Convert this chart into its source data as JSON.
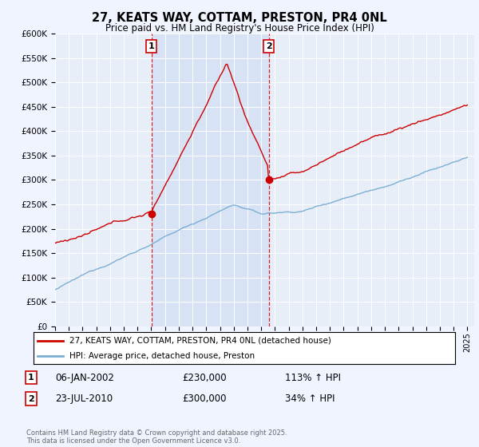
{
  "title": "27, KEATS WAY, COTTAM, PRESTON, PR4 0NL",
  "subtitle": "Price paid vs. HM Land Registry's House Price Index (HPI)",
  "ylabel_ticks": [
    "£0",
    "£50K",
    "£100K",
    "£150K",
    "£200K",
    "£250K",
    "£300K",
    "£350K",
    "£400K",
    "£450K",
    "£500K",
    "£550K",
    "£600K"
  ],
  "ylim": [
    0,
    600000
  ],
  "ytick_values": [
    0,
    50000,
    100000,
    150000,
    200000,
    250000,
    300000,
    350000,
    400000,
    450000,
    500000,
    550000,
    600000
  ],
  "bg_color": "#f0f4ff",
  "plot_bg_color": "#e8eef8",
  "shade_color": "#d0ddf5",
  "red_line_color": "#cc0000",
  "blue_line_color": "#7bafd4",
  "grid_color": "#ffffff",
  "legend_red": "27, KEATS WAY, COTTAM, PRESTON, PR4 0NL (detached house)",
  "legend_blue": "HPI: Average price, detached house, Preston",
  "annotation1_date": "06-JAN-2002",
  "annotation1_price": "£230,000",
  "annotation1_hpi": "113% ↑ HPI",
  "annotation2_date": "23-JUL-2010",
  "annotation2_price": "£300,000",
  "annotation2_hpi": "34% ↑ HPI",
  "footer": "Contains HM Land Registry data © Crown copyright and database right 2025.\nThis data is licensed under the Open Government Licence v3.0.",
  "marker1_year": 2002.05,
  "marker2_year": 2010.55,
  "marker1_red_price": 230000,
  "marker2_red_price": 300000
}
